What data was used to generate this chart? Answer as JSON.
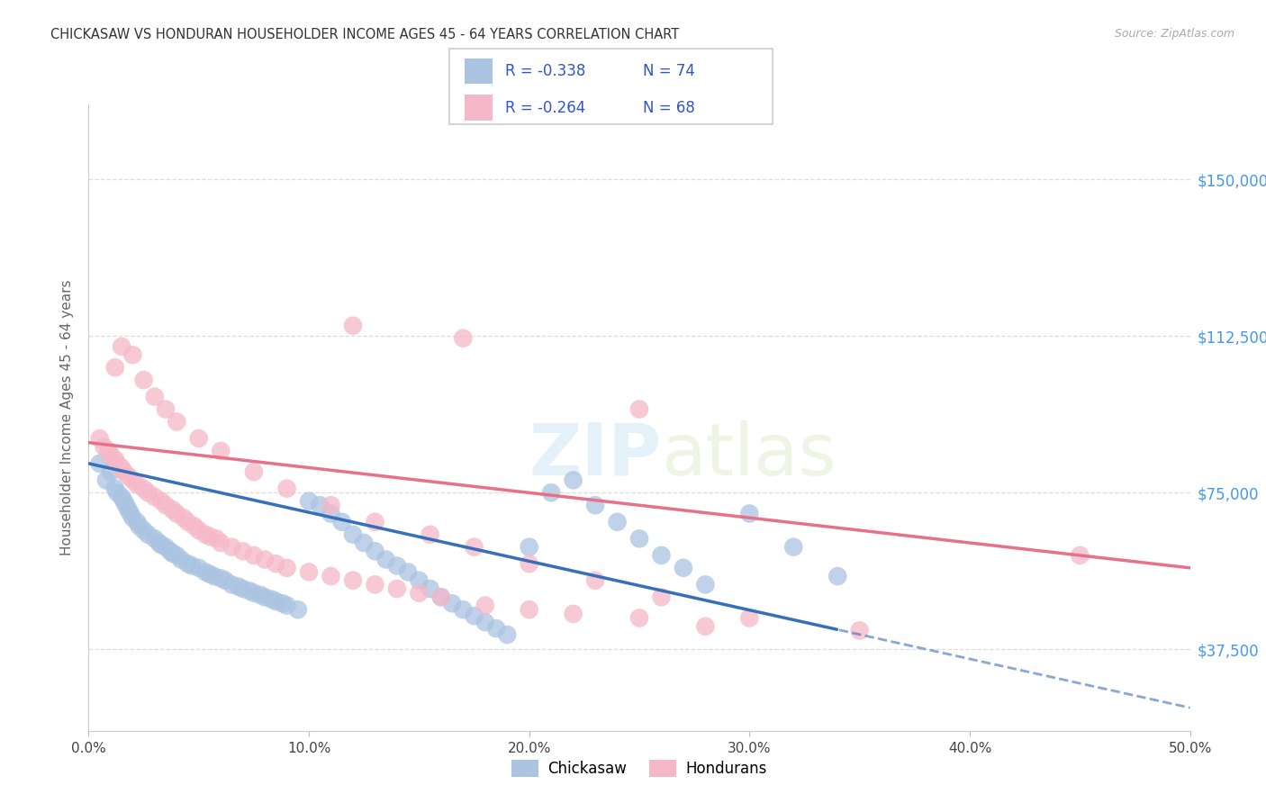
{
  "title": "CHICKASAW VS HONDURAN HOUSEHOLDER INCOME AGES 45 - 64 YEARS CORRELATION CHART",
  "source": "Source: ZipAtlas.com",
  "xlabel_ticks": [
    "0.0%",
    "",
    "",
    "",
    "",
    "",
    "10.0%",
    "",
    "",
    "",
    "",
    "",
    "20.0%",
    "",
    "",
    "",
    "",
    "",
    "30.0%",
    "",
    "",
    "",
    "",
    "",
    "40.0%",
    "",
    "",
    "",
    "",
    "",
    "50.0%"
  ],
  "xlabel_vals": [
    0.0,
    0.5
  ],
  "ylabel_ticks": [
    "$37,500",
    "$75,000",
    "$112,500",
    "$150,000"
  ],
  "ylabel_vals": [
    37500,
    75000,
    112500,
    150000
  ],
  "ylabel_label": "Householder Income Ages 45 - 64 years",
  "xlim": [
    0.0,
    0.5
  ],
  "ylim": [
    18000,
    168000
  ],
  "watermark_zip": "ZIP",
  "watermark_atlas": "atlas",
  "legend_r1": "-0.338",
  "legend_n1": "74",
  "legend_r2": "-0.264",
  "legend_n2": "68",
  "chickasaw_color": "#aac4e2",
  "honduran_color": "#f5b8c8",
  "chickasaw_line_color": "#3570b8",
  "honduran_line_color": "#e8718a",
  "chickasaw_label": "Chickasaw",
  "honduran_label": "Hondurans",
  "title_color": "#333333",
  "source_color": "#aaaaaa",
  "axis_label_color": "#666666",
  "tick_color_right": "#4499ee",
  "grid_color": "#dddddd",
  "chickasaw_x": [
    0.005,
    0.008,
    0.01,
    0.012,
    0.013,
    0.015,
    0.016,
    0.017,
    0.018,
    0.019,
    0.02,
    0.022,
    0.023,
    0.025,
    0.027,
    0.03,
    0.032,
    0.033,
    0.035,
    0.037,
    0.038,
    0.04,
    0.042,
    0.045,
    0.047,
    0.05,
    0.053,
    0.055,
    0.057,
    0.06,
    0.062,
    0.065,
    0.068,
    0.07,
    0.073,
    0.075,
    0.078,
    0.08,
    0.083,
    0.085,
    0.088,
    0.09,
    0.095,
    0.1,
    0.105,
    0.11,
    0.115,
    0.12,
    0.125,
    0.13,
    0.135,
    0.14,
    0.145,
    0.15,
    0.155,
    0.16,
    0.165,
    0.17,
    0.175,
    0.18,
    0.185,
    0.19,
    0.2,
    0.21,
    0.22,
    0.23,
    0.24,
    0.25,
    0.26,
    0.27,
    0.28,
    0.3,
    0.32,
    0.34
  ],
  "chickasaw_y": [
    82000,
    78000,
    80000,
    76000,
    75000,
    74000,
    73000,
    72000,
    71000,
    70000,
    69000,
    68000,
    67000,
    66000,
    65000,
    64000,
    63000,
    62500,
    62000,
    61000,
    60500,
    60000,
    59000,
    58000,
    57500,
    57000,
    56000,
    55500,
    55000,
    54500,
    54000,
    53000,
    52500,
    52000,
    51500,
    51000,
    50500,
    50000,
    49500,
    49000,
    48500,
    48000,
    47000,
    73000,
    72000,
    70000,
    68000,
    65000,
    63000,
    61000,
    59000,
    57500,
    56000,
    54000,
    52000,
    50000,
    48500,
    47000,
    45500,
    44000,
    42500,
    41000,
    62000,
    75000,
    78000,
    72000,
    68000,
    64000,
    60000,
    57000,
    53000,
    70000,
    62000,
    55000
  ],
  "honduran_x": [
    0.005,
    0.007,
    0.009,
    0.01,
    0.012,
    0.013,
    0.015,
    0.016,
    0.018,
    0.02,
    0.022,
    0.025,
    0.027,
    0.03,
    0.033,
    0.035,
    0.038,
    0.04,
    0.043,
    0.045,
    0.048,
    0.05,
    0.053,
    0.055,
    0.058,
    0.06,
    0.065,
    0.07,
    0.075,
    0.08,
    0.085,
    0.09,
    0.1,
    0.11,
    0.12,
    0.13,
    0.14,
    0.15,
    0.16,
    0.18,
    0.2,
    0.22,
    0.25,
    0.28,
    0.35,
    0.45,
    0.012,
    0.015,
    0.02,
    0.025,
    0.03,
    0.035,
    0.04,
    0.05,
    0.06,
    0.075,
    0.09,
    0.11,
    0.13,
    0.155,
    0.175,
    0.2,
    0.23,
    0.26,
    0.3,
    0.12,
    0.17,
    0.25
  ],
  "honduran_y": [
    88000,
    86000,
    85000,
    84000,
    83000,
    82000,
    81000,
    80000,
    79000,
    78000,
    77000,
    76000,
    75000,
    74000,
    73000,
    72000,
    71000,
    70000,
    69000,
    68000,
    67000,
    66000,
    65000,
    64500,
    64000,
    63000,
    62000,
    61000,
    60000,
    59000,
    58000,
    57000,
    56000,
    55000,
    54000,
    53000,
    52000,
    51000,
    50000,
    48000,
    47000,
    46000,
    45000,
    43000,
    42000,
    60000,
    105000,
    110000,
    108000,
    102000,
    98000,
    95000,
    92000,
    88000,
    85000,
    80000,
    76000,
    72000,
    68000,
    65000,
    62000,
    58000,
    54000,
    50000,
    45000,
    115000,
    112000,
    95000
  ]
}
